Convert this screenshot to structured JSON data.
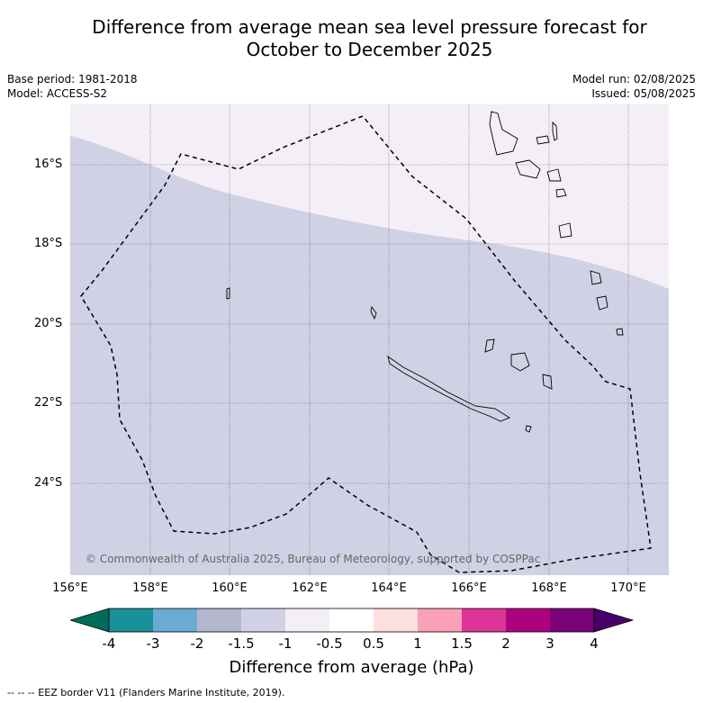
{
  "title": {
    "line1": "Difference from average mean sea level pressure forecast for",
    "line2": "October to December 2025"
  },
  "meta": {
    "base_period": "Base period: 1981-2018",
    "model": "Model: ACCESS-S2",
    "model_run": "Model run: 02/08/2025",
    "issued": "Issued: 05/08/2025"
  },
  "map": {
    "lat_labels": [
      "16°S",
      "18°S",
      "20°S",
      "22°S",
      "24°S"
    ],
    "lon_labels": [
      "156°E",
      "158°E",
      "160°E",
      "162°E",
      "164°E",
      "166°E",
      "168°E",
      "170°E"
    ],
    "credit": "© Commonwealth of Australia 2025, Bureau of Meteorology, supported by COSPPac",
    "colors": {
      "neg_1_5_to_neg_1": "#d1d1e5",
      "neg_1_to_neg_0_5": "#f4eef6",
      "eez_line": "#000000"
    }
  },
  "colorbar": {
    "title": "Difference from average (hPa)",
    "labels": [
      "-4",
      "-3",
      "-2",
      "-1.5",
      "-1",
      "-0.5",
      "0.5",
      "1",
      "1.5",
      "2",
      "3",
      "4"
    ],
    "colors": [
      "#1a9098",
      "#6aabd3",
      "#b3b7ce",
      "#d1d1e5",
      "#f4eef6",
      "#ffffff",
      "#fde0dd",
      "#fba0b9",
      "#dd3497",
      "#ae017e",
      "#7a0177"
    ],
    "under_color": "#016c59",
    "over_color": "#49006a"
  },
  "footer": "--  --  -- EEZ border V11 (Flanders Marine Institute, 2019)."
}
